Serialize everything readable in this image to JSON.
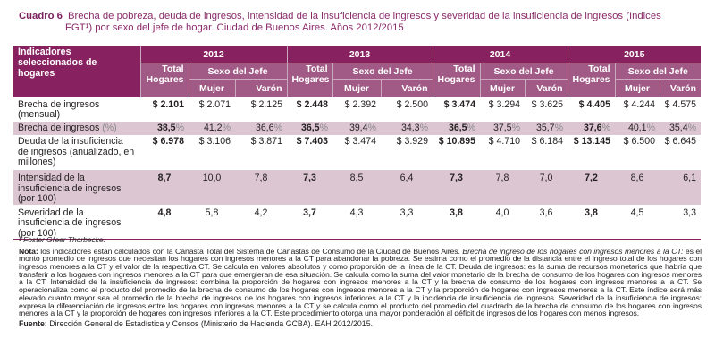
{
  "caption": {
    "number": "Cuadro 6",
    "title_line1": "Brecha de pobreza, deuda de ingresos, intensidad de la insuficiencia de ingresos y severidad de la insuficiencia de ingresos (Indices",
    "title_line2": "FGT¹) por sexo del jefe de hogar. Ciudad de Buenos Aires. Años 2012/2015"
  },
  "table": {
    "indicator_header": "Indicadores seleccionados de hogares",
    "years": [
      "2012",
      "2013",
      "2014",
      "2015"
    ],
    "total_header": "Total Hogares",
    "sexo_header": "Sexo del Jefe",
    "mujer_header": "Mujer",
    "varon_header": "Varón",
    "rows": [
      {
        "label": "Brecha de ingresos (mensual)",
        "values": [
          "$ 2.101",
          "$ 2.071",
          "$ 2.125",
          "$ 2.448",
          "$ 2.392",
          "$ 2.500",
          "$ 3.474",
          "$ 3.294",
          "$ 3.625",
          "$ 4.405",
          "$ 4.244",
          "$ 4.575"
        ]
      },
      {
        "label": "Brecha de ingresos",
        "label_unit": "(%)",
        "values": [
          "38,5",
          "41,2",
          "36,6",
          "36,5",
          "39,4",
          "34,3",
          "36,5",
          "37,5",
          "35,7",
          "37,6",
          "40,1",
          "35,4"
        ],
        "unit": "%"
      },
      {
        "label": "Deuda de la insuficiencia de ingresos (anualizado, en millones)",
        "values": [
          "$ 6.978",
          "$ 3.106",
          "$ 3.871",
          "$ 7.403",
          "$ 3.474",
          "$ 3.929",
          "$ 10.895",
          "$ 4.710",
          "$ 6.184",
          "$ 13.145",
          "$ 6.500",
          "$ 6.645"
        ]
      },
      {
        "label": "Intensidad de la insuficiencia de ingresos (por 100)",
        "values": [
          "8,7",
          "10,0",
          "7,8",
          "7,3",
          "8,5",
          "6,4",
          "7,3",
          "7,8",
          "7,0",
          "7,2",
          "8,6",
          "6,1"
        ]
      },
      {
        "label": "Severidad de la insuficiencia de ingresos (por 100)",
        "values": [
          "4,8",
          "5,8",
          "4,2",
          "3,7",
          "4,3",
          "3,3",
          "3,8",
          "4,0",
          "3,6",
          "3,8",
          "4,5",
          "3,3"
        ]
      }
    ]
  },
  "notes": {
    "footnote": "¹ Foster Greer Thorbecke.",
    "nota_label": "Nota:",
    "nota_intro": " los indicadores están calculados con la Canasta Total del Sistema de Canastas de Consumo de la Ciudad de Buenos Aires. ",
    "nota_italic": "Brecha de ingreso de los hogares con ingresos menores a la CT:",
    "nota_rest": " es el monto promedio de ingresos que necesitan los hogares con ingresos menores a la CT para abandonar la pobreza. Se estima como el promedio de la distancia entre el ingreso total de los hogares con ingresos menores a la CT y el valor de la respectiva CT. Se calcula en valores absolutos y como proporción de la línea de la CT. Deuda de ingresos: es la suma de recursos monetarios que habría que transferir a los hogares con ingresos menores a la CT para que emergieran de esa situación. Se calcula como la suma del valor monetario de la brecha de consumo de los hogares con ingresos menores a la CT. Intensidad de la insuficiencia de ingresos: combina la proporción de hogares con ingresos menores a la CT y la brecha de consumo de los hogares con ingresos menores a la CT. Se operacionaliza como el producto del promedio de la brecha de consumo de los hogares con ingresos menores a la CT y la proporción de hogares con ingresos menores a la CT. Este índice será más elevado cuanto mayor sea el promedio de la brecha de ingresos de los hogares con ingresos inferiores a la CT y la incidencia de insuficiencia de ingresos. Severidad de la insuficiencia de ingresos: expresa la diferenciación de ingresos entre los hogares con ingresos menores a la CT y se calcula como el producto del promedio del cuadrado de la brecha de consumo de los hogares con ingresos menores a la CT y la proporción de hogares con ingresos inferiores a la CT. Este procedimiento otorga una mayor ponderación al déficit de ingresos de los hogares con menos ingresos.",
    "fuente_label": "Fuente:",
    "fuente_text": " Dirección General de Estadística y Censos (Ministerio de Hacienda GCBA). EAH 2012/2015."
  }
}
